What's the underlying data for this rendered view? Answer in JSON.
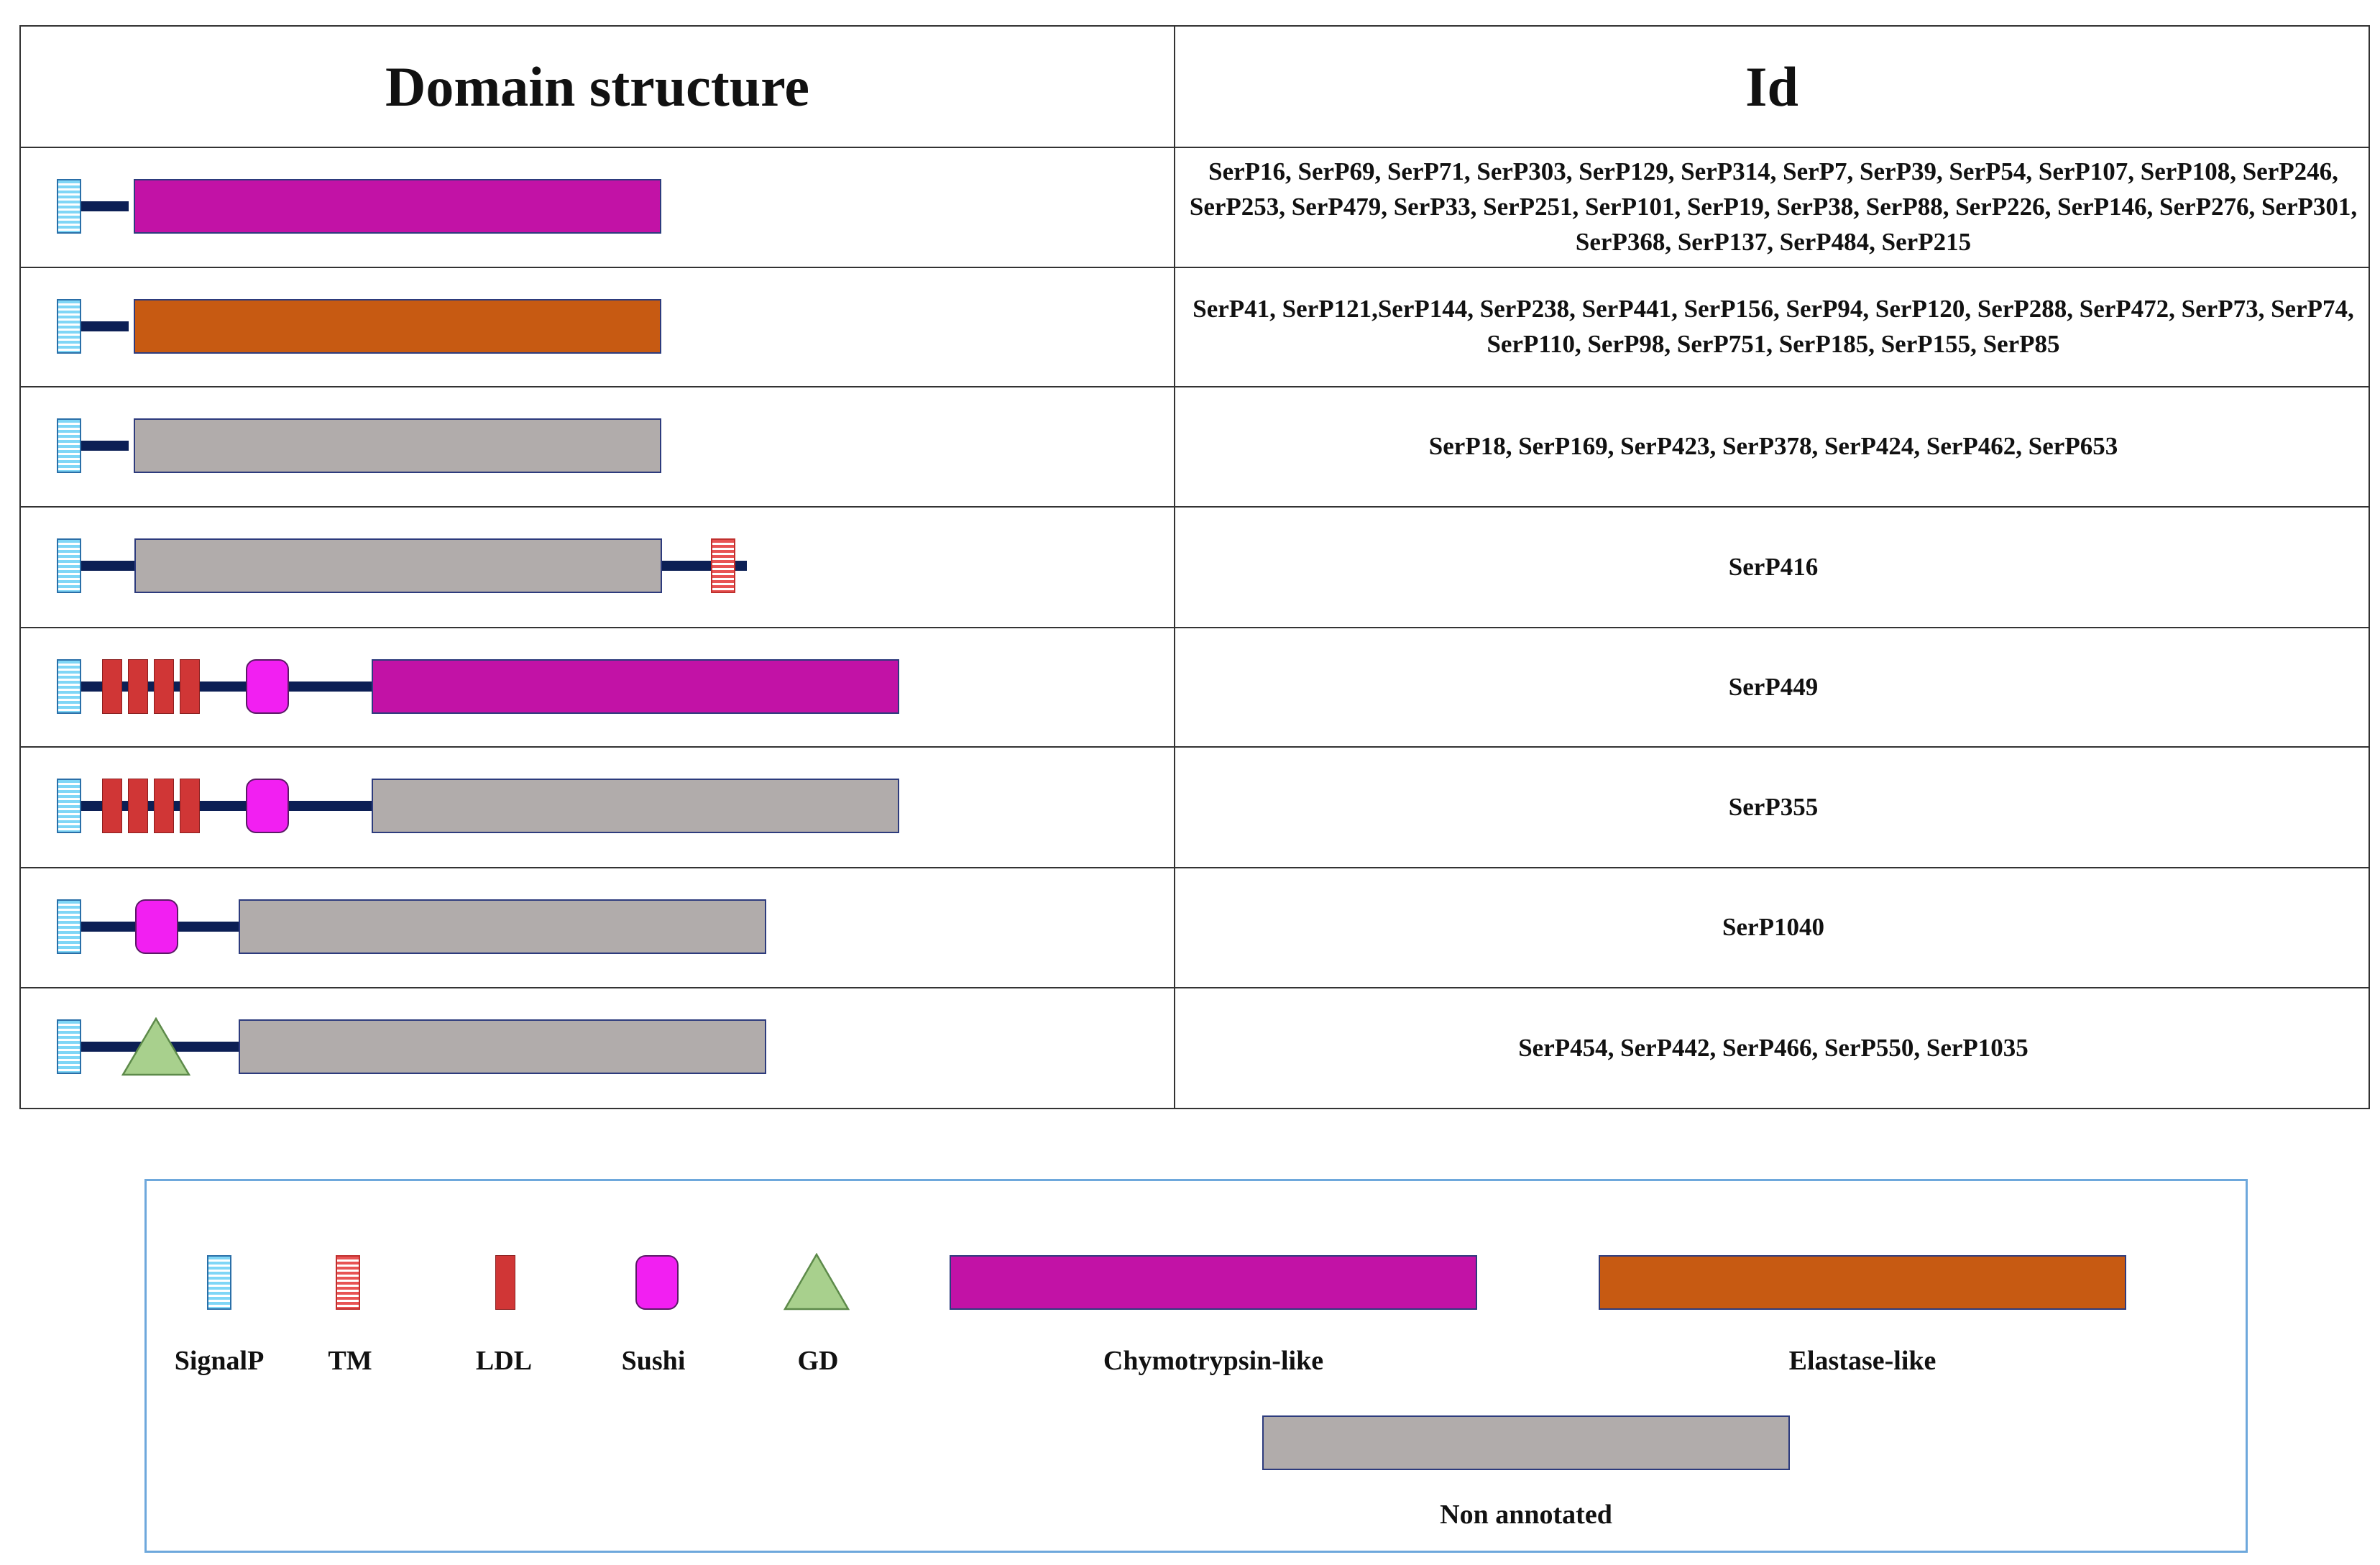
{
  "table": {
    "header_domain": "Domain structure",
    "header_id": "Id",
    "rows": [
      {
        "ids": "SerP16, SerP69, SerP71, SerP303, SerP129, SerP314, SerP7, SerP39, SerP54, SerP107, SerP108, SerP246, SerP253, SerP479, SerP33, SerP251, SerP101, SerP19, SerP38, SerP88, SerP226, SerP146, SerP276, SerP301, SerP368, SerP137, SerP484, SerP215",
        "domains": [
          "SignalP",
          "Chymotrypsin-like"
        ]
      },
      {
        "ids": "SerP41, SerP121,SerP144, SerP238, SerP441, SerP156, SerP94, SerP120, SerP288, SerP472, SerP73, SerP74, SerP110, SerP98, SerP751, SerP185, SerP155, SerP85",
        "domains": [
          "SignalP",
          "Elastase-like"
        ]
      },
      {
        "ids": "SerP18, SerP169, SerP423, SerP378, SerP424, SerP462, SerP653",
        "domains": [
          "SignalP",
          "Non annotated"
        ]
      },
      {
        "ids": "SerP416",
        "domains": [
          "SignalP",
          "Non annotated",
          "TM"
        ]
      },
      {
        "ids": "SerP449",
        "domains": [
          "SignalP",
          "LDL",
          "LDL",
          "LDL",
          "LDL",
          "Sushi",
          "Chymotrypsin-like"
        ]
      },
      {
        "ids": "SerP355",
        "domains": [
          "SignalP",
          "LDL",
          "LDL",
          "LDL",
          "LDL",
          "Sushi",
          "Non annotated"
        ]
      },
      {
        "ids": "SerP1040",
        "domains": [
          "SignalP",
          "Sushi",
          "Non annotated"
        ]
      },
      {
        "ids": "SerP454, SerP442, SerP466, SerP550, SerP1035",
        "domains": [
          "SignalP",
          "GD",
          "Non annotated"
        ]
      }
    ]
  },
  "legend": {
    "signalp": "SignalP",
    "tm": "TM",
    "ldl": "LDL",
    "sushi": "Sushi",
    "gd": "GD",
    "chymotrypsin": "Chymotrypsin-like",
    "elastase": "Elastase-like",
    "non_annotated": "Non annotated"
  },
  "colors": {
    "signalp": "#7fd6f6",
    "tm": "#e85454",
    "ldl": "#d03636",
    "sushi": "#f21ff2",
    "gd": "#a8d08d",
    "chymotrypsin": "#c212a6",
    "elastase": "#c75a12",
    "non_annotated": "#b1acab",
    "linker": "#0c1f55",
    "legend_border": "#6ea8dc"
  }
}
